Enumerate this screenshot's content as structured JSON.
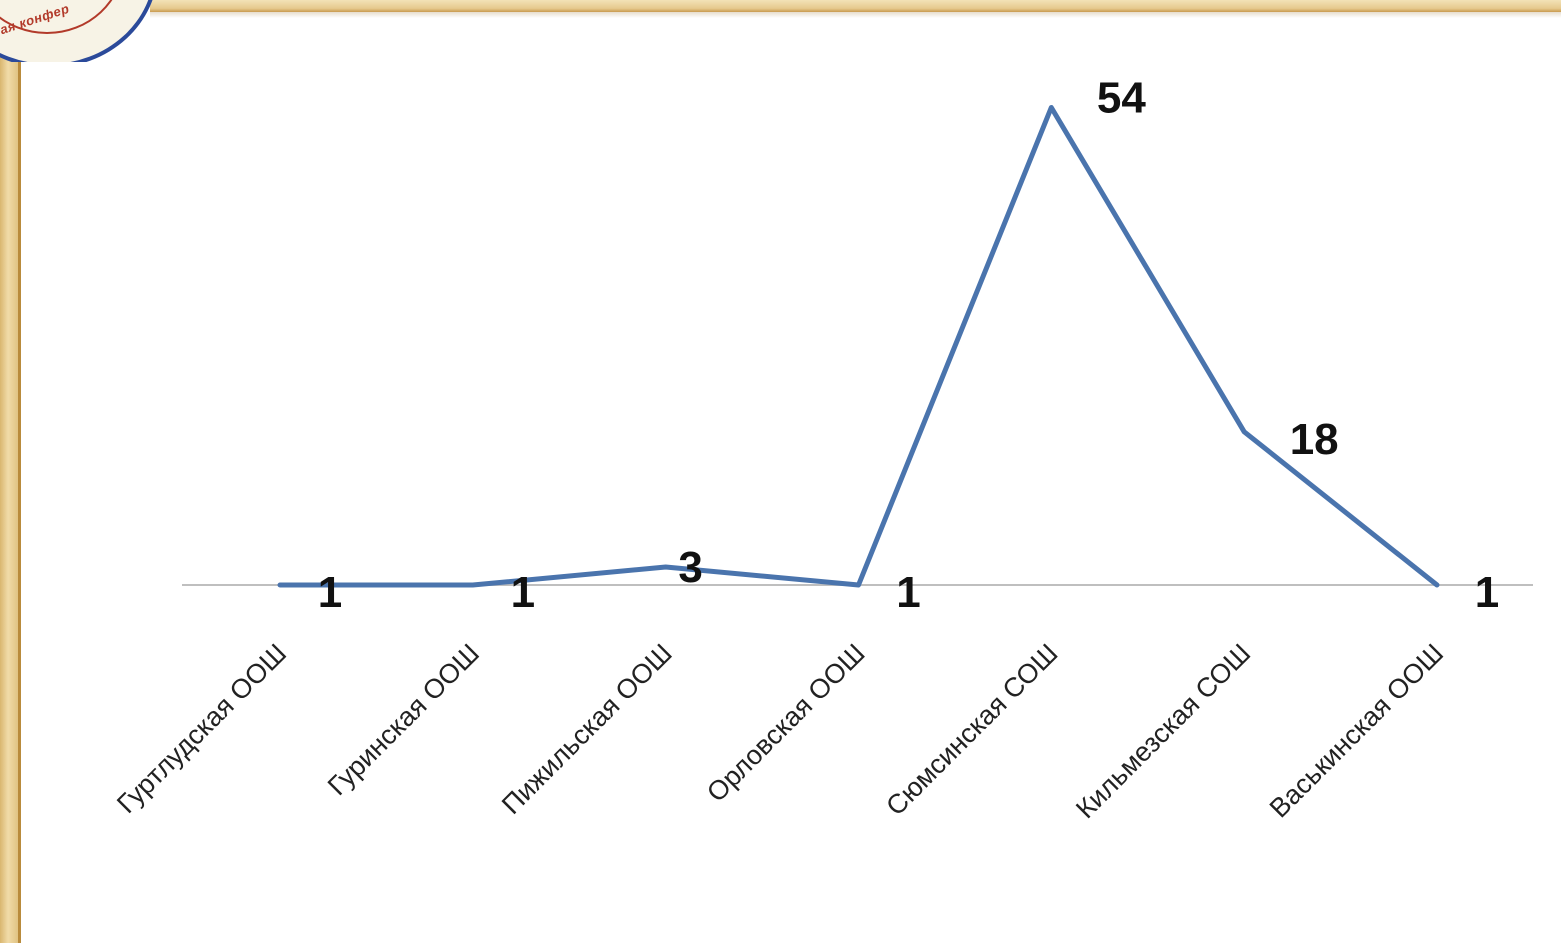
{
  "logo": {
    "text": "ая конфер"
  },
  "chart_data": {
    "type": "line",
    "categories": [
      "Гуртлудская ООШ",
      "Гуринская ООШ",
      "Пижильская ООШ",
      "Орловская ООШ",
      "Сюмсинская СОШ",
      "Кильмезская СОШ",
      "Васькинская ООШ"
    ],
    "series": [
      {
        "values": [
          1,
          1,
          3,
          1,
          54,
          18,
          1
        ]
      }
    ],
    "data_labels": [
      "1",
      "1",
      "3",
      "1",
      "54",
      "18",
      "1"
    ],
    "title": "",
    "xlabel": "",
    "ylabel": "",
    "ylim": [
      0,
      56
    ],
    "grid": false,
    "legend": "none",
    "colors": {
      "line": "#4a74ad",
      "axis": "#bfbfbf",
      "text": "#111111"
    }
  }
}
